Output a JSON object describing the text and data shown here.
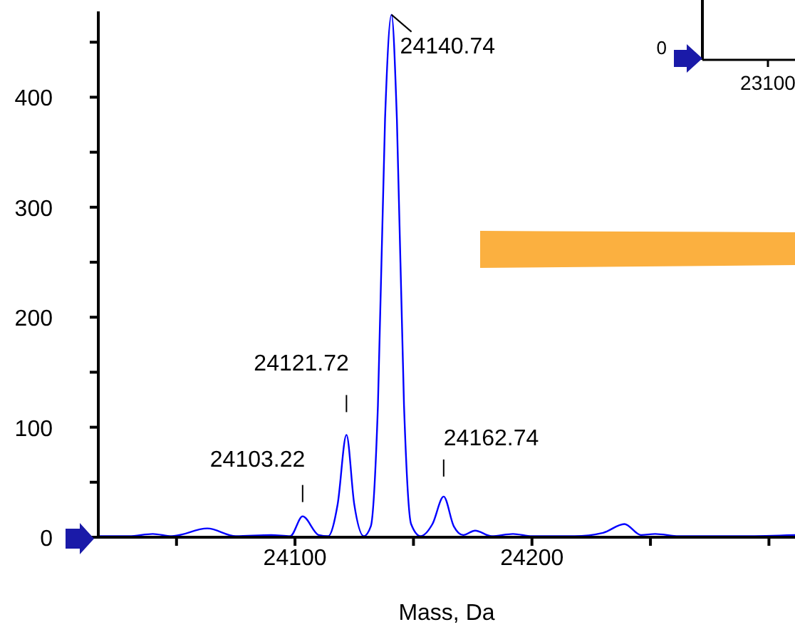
{
  "chart_data": [
    {
      "type": "line",
      "xlabel": "Mass, Da",
      "color": "#0000ff",
      "marker": "none",
      "x": [
        24017,
        24030,
        24040,
        24048,
        24063,
        24075,
        24090,
        24098,
        24103.22,
        24110,
        24114,
        24118,
        24121.72,
        24125,
        24129,
        24132,
        24135,
        24138,
        24140.74,
        24143,
        24146,
        24149,
        24153,
        24158,
        24162.74,
        24167,
        24171,
        24176,
        24183,
        24192,
        24200,
        24218,
        24230,
        24239,
        24246,
        24252,
        24262,
        24290,
        24311
      ],
      "values": [
        1,
        1,
        3,
        1,
        8,
        1,
        2,
        1,
        19,
        2,
        1,
        30,
        93,
        30,
        1,
        10,
        120,
        380,
        475,
        380,
        120,
        12,
        1,
        12,
        37,
        10,
        2,
        6,
        1,
        3,
        1,
        1,
        4,
        12,
        2,
        3,
        1,
        1,
        2
      ],
      "xlim": [
        24017,
        24311
      ],
      "xticks": [
        {
          "value": 24050,
          "label": null
        },
        {
          "value": 24100,
          "label": "24100"
        },
        {
          "value": 24150,
          "label": null
        },
        {
          "value": 24200,
          "label": "24200"
        },
        {
          "value": 24250,
          "label": null
        },
        {
          "value": 24300,
          "label": null
        }
      ],
      "ylim": [
        0,
        478
      ],
      "yticks": [
        0,
        {
          "value": 50,
          "label": null
        },
        100,
        {
          "value": 150,
          "label": null
        },
        200,
        {
          "value": 250,
          "label": null
        },
        300,
        {
          "value": 350,
          "label": null
        },
        400,
        {
          "value": 450,
          "label": null
        }
      ],
      "annotations": [
        {
          "text": "24103.22",
          "x": 24103.22,
          "y": 19
        },
        {
          "text": "24121.72",
          "x": 24121.72,
          "y": 93
        },
        {
          "text": "24140.74",
          "x": 24140.74,
          "y": 475
        },
        {
          "text": "24162.74",
          "x": 24162.74,
          "y": 37
        }
      ]
    },
    {
      "type": "other",
      "annotations": [
        "0",
        "23100"
      ]
    }
  ]
}
